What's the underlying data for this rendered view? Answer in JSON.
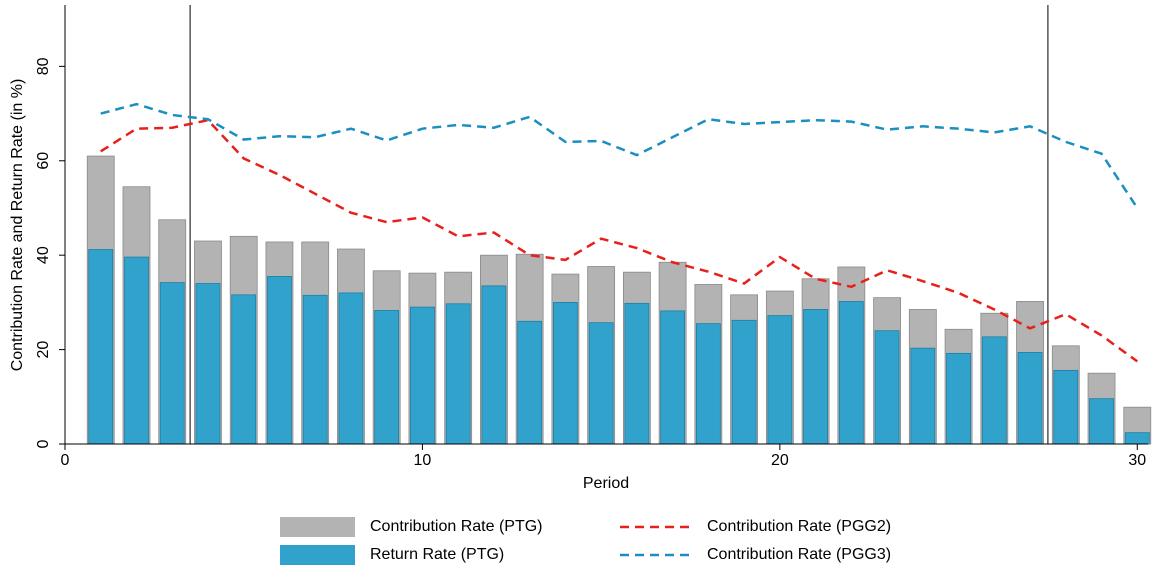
{
  "chart_data": {
    "type": "bar",
    "barmode": "overlay",
    "xlabel": "Period",
    "ylabel": "Contribution Rate and Return Rate (in %)",
    "x": [
      1,
      2,
      3,
      4,
      5,
      6,
      7,
      8,
      9,
      10,
      11,
      12,
      13,
      14,
      15,
      16,
      17,
      18,
      19,
      20,
      21,
      22,
      23,
      24,
      25,
      26,
      27,
      28,
      29,
      30
    ],
    "xlim": [
      0,
      30.3
    ],
    "xticks": [
      0,
      10,
      20,
      30
    ],
    "ylim": [
      0,
      93
    ],
    "yticks": [
      0,
      20,
      40,
      60,
      80
    ],
    "vlines": [
      3.5,
      27.5
    ],
    "grid": false,
    "series": [
      {
        "name": "Contribution Rate (PTG)",
        "type": "bar",
        "color": "#b3b3b3",
        "values": [
          61,
          54.5,
          47.5,
          43,
          44,
          42.8,
          42.8,
          41.3,
          36.7,
          36.2,
          36.4,
          40,
          40.2,
          36,
          37.6,
          36.4,
          38.5,
          33.8,
          31.6,
          32.4,
          35,
          37.5,
          31,
          28.5,
          24.3,
          27.7,
          30.2,
          20.8,
          15,
          7.8
        ]
      },
      {
        "name": "Return Rate (PTG)",
        "type": "bar",
        "color": "#31a2cb",
        "values": [
          41.2,
          39.6,
          34.2,
          34,
          31.6,
          35.5,
          31.5,
          32,
          28.3,
          29,
          29.7,
          33.5,
          26,
          30,
          25.7,
          29.8,
          28.2,
          25.5,
          26.2,
          27.2,
          28.5,
          30.2,
          24,
          20.3,
          19.2,
          22.7,
          19.4,
          15.6,
          9.6,
          2.4
        ]
      },
      {
        "name": "Contribution Rate (PGG2)",
        "type": "line",
        "dash": true,
        "color": "#e8201c",
        "values": [
          62,
          66.8,
          67,
          68.6,
          60.5,
          57,
          53,
          49,
          47,
          48,
          44,
          44.8,
          40,
          39,
          43.5,
          41.5,
          38.5,
          36.5,
          34,
          39.6,
          35,
          33.3,
          36.8,
          34.5,
          32,
          28.5,
          24.5,
          27.5,
          23,
          17.5
        ]
      },
      {
        "name": "Contribution Rate (PGG3)",
        "type": "line",
        "dash": true,
        "color": "#1b8fc0",
        "values": [
          70,
          72,
          69.7,
          68.8,
          64.5,
          65.2,
          65,
          66.8,
          64.3,
          66.8,
          67.6,
          67,
          69.3,
          64,
          64.2,
          61.2,
          65,
          68.8,
          67.8,
          68.2,
          68.6,
          68.3,
          66.6,
          67.3,
          66.8,
          66,
          67.3,
          64,
          61.5,
          50
        ]
      }
    ]
  }
}
